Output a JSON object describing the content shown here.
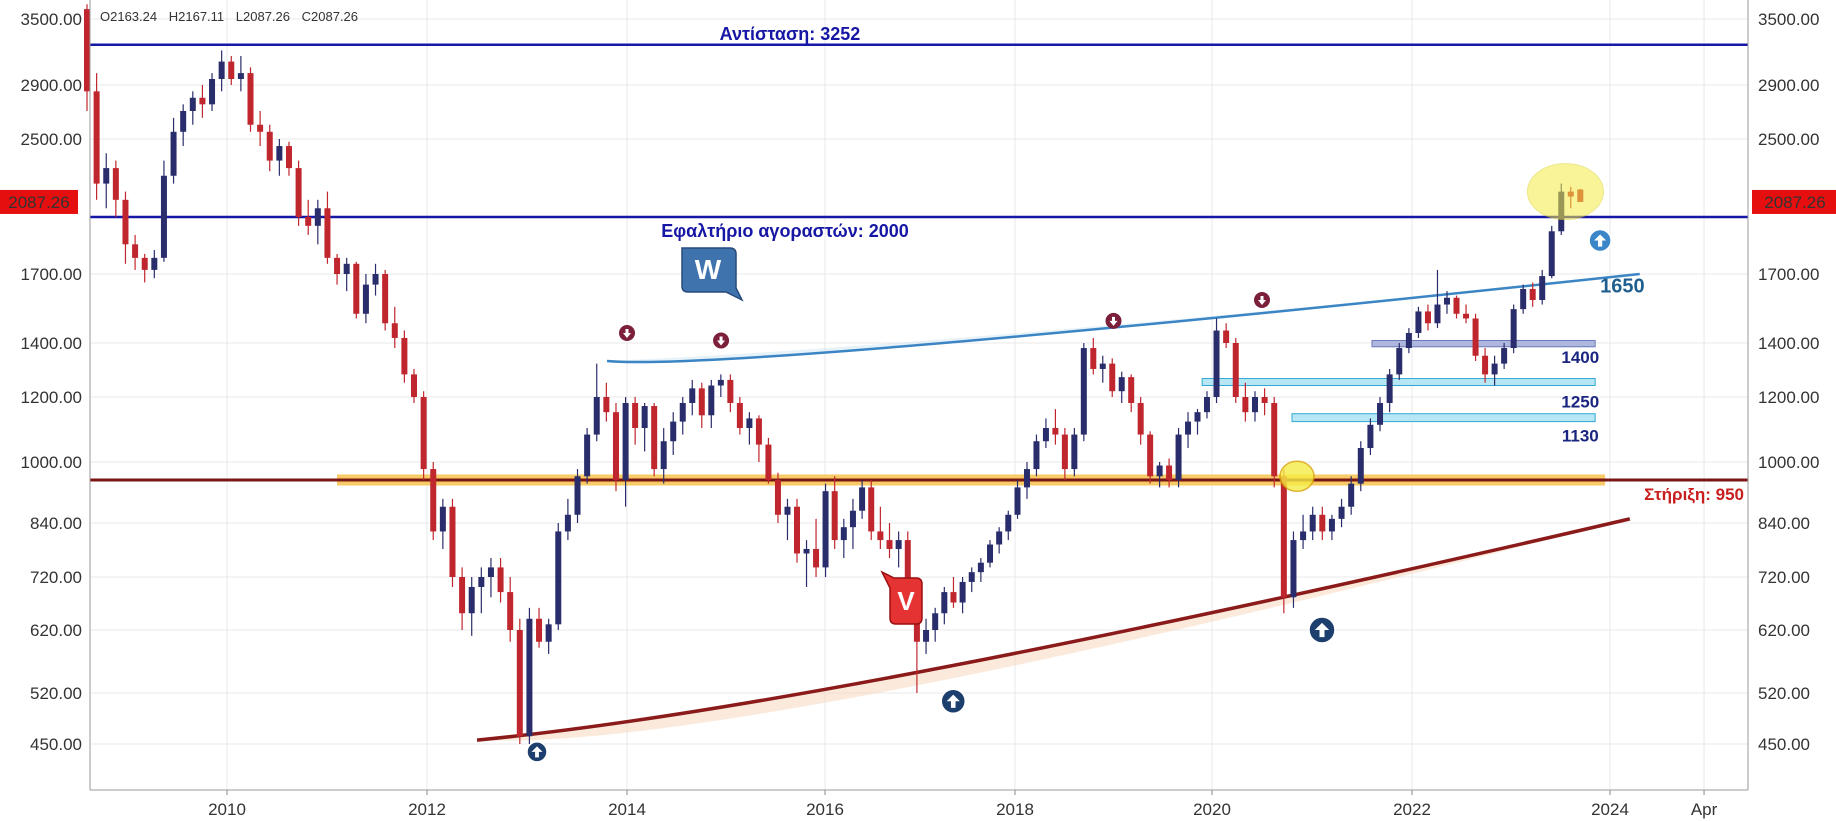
{
  "ohlc_readout": {
    "open": "O2163.24",
    "high": "H2167.11",
    "low": "L2087.26",
    "close": "C2087.26"
  },
  "chart_data": {
    "type": "candlestick",
    "timeframe": "monthly",
    "y_scale": "log",
    "ylim": [
      420,
      3650
    ],
    "y_ticks": [
      "3500.00",
      "2900.00",
      "2500.00",
      "1700.00",
      "1400.00",
      "1200.00",
      "1000.00",
      "840.00",
      "720.00",
      "620.00",
      "520.00",
      "450.00"
    ],
    "x_ticks": [
      "2010",
      "2012",
      "2014",
      "2016",
      "2018",
      "2020",
      "2022",
      "2024",
      "Apr"
    ],
    "last_price": "2087.26",
    "colors": {
      "up": "#2a2d6b",
      "down": "#c0262d",
      "resistance": "#1717a5",
      "support": "#7a1515",
      "trend_up": "#8b1a1a",
      "w_curve": "#3b85c4",
      "zone": "#b7e6f5"
    },
    "candles": [
      [
        2008.6,
        3600,
        3650,
        2700,
        2850
      ],
      [
        2008.7,
        2850,
        3000,
        2100,
        2200
      ],
      [
        2008.8,
        2200,
        2400,
        2050,
        2300
      ],
      [
        2008.9,
        2300,
        2350,
        2000,
        2100
      ],
      [
        2009.0,
        2100,
        2150,
        1750,
        1850
      ],
      [
        2009.1,
        1850,
        1900,
        1720,
        1780
      ],
      [
        2009.2,
        1780,
        1800,
        1660,
        1720
      ],
      [
        2009.3,
        1720,
        1820,
        1680,
        1780
      ],
      [
        2009.4,
        1780,
        2350,
        1760,
        2250
      ],
      [
        2009.5,
        2250,
        2650,
        2200,
        2550
      ],
      [
        2009.6,
        2550,
        2750,
        2450,
        2700
      ],
      [
        2009.7,
        2700,
        2850,
        2600,
        2800
      ],
      [
        2009.8,
        2800,
        2900,
        2650,
        2750
      ],
      [
        2009.9,
        2750,
        3000,
        2700,
        2950
      ],
      [
        2010.0,
        2950,
        3200,
        2850,
        3100
      ],
      [
        2010.1,
        3100,
        3150,
        2900,
        2950
      ],
      [
        2010.2,
        2950,
        3150,
        2850,
        3000
      ],
      [
        2010.3,
        3000,
        3050,
        2550,
        2600
      ],
      [
        2010.4,
        2600,
        2700,
        2450,
        2550
      ],
      [
        2010.5,
        2550,
        2600,
        2280,
        2350
      ],
      [
        2010.6,
        2350,
        2500,
        2250,
        2450
      ],
      [
        2010.7,
        2450,
        2480,
        2250,
        2300
      ],
      [
        2010.8,
        2300,
        2350,
        1950,
        2000
      ],
      [
        2010.9,
        2000,
        2100,
        1900,
        1950
      ],
      [
        2011.0,
        1950,
        2100,
        1850,
        2050
      ],
      [
        2011.1,
        2050,
        2150,
        1750,
        1780
      ],
      [
        2011.2,
        1780,
        1800,
        1650,
        1700
      ],
      [
        2011.3,
        1700,
        1780,
        1620,
        1750
      ],
      [
        2011.4,
        1750,
        1760,
        1500,
        1520
      ],
      [
        2011.5,
        1520,
        1700,
        1480,
        1650
      ],
      [
        2011.6,
        1650,
        1750,
        1600,
        1700
      ],
      [
        2011.7,
        1700,
        1720,
        1450,
        1480
      ],
      [
        2011.8,
        1480,
        1550,
        1380,
        1420
      ],
      [
        2011.9,
        1420,
        1450,
        1250,
        1280
      ],
      [
        2012.0,
        1280,
        1300,
        1180,
        1200
      ],
      [
        2012.1,
        1200,
        1220,
        950,
        980
      ],
      [
        2012.2,
        980,
        1000,
        800,
        820
      ],
      [
        2012.3,
        820,
        900,
        780,
        880
      ],
      [
        2012.4,
        880,
        900,
        700,
        720
      ],
      [
        2012.5,
        720,
        740,
        620,
        650
      ],
      [
        2012.6,
        650,
        720,
        610,
        700
      ],
      [
        2012.7,
        700,
        740,
        650,
        720
      ],
      [
        2012.8,
        720,
        760,
        680,
        740
      ],
      [
        2012.9,
        740,
        760,
        670,
        690
      ],
      [
        2013.0,
        690,
        720,
        600,
        620
      ],
      [
        2013.1,
        620,
        640,
        450,
        460
      ],
      [
        2013.2,
        460,
        660,
        450,
        640
      ],
      [
        2013.3,
        640,
        660,
        590,
        600
      ],
      [
        2013.4,
        600,
        640,
        580,
        630
      ],
      [
        2013.5,
        630,
        840,
        620,
        820
      ],
      [
        2013.6,
        820,
        900,
        800,
        860
      ],
      [
        2013.7,
        860,
        980,
        840,
        960
      ],
      [
        2013.8,
        960,
        1100,
        940,
        1080
      ],
      [
        2013.9,
        1080,
        1320,
        1060,
        1200
      ],
      [
        2014.0,
        1200,
        1250,
        1120,
        1150
      ],
      [
        2014.1,
        1150,
        1180,
        920,
        950
      ],
      [
        2014.2,
        950,
        1200,
        880,
        1180
      ],
      [
        2014.3,
        1180,
        1200,
        1050,
        1100
      ],
      [
        2014.4,
        1100,
        1180,
        1030,
        1170
      ],
      [
        2014.5,
        1170,
        1180,
        960,
        980
      ],
      [
        2014.6,
        980,
        1100,
        940,
        1060
      ],
      [
        2014.7,
        1060,
        1150,
        1020,
        1120
      ],
      [
        2014.8,
        1120,
        1200,
        1080,
        1180
      ],
      [
        2014.9,
        1180,
        1260,
        1140,
        1230
      ],
      [
        2015.0,
        1230,
        1250,
        1100,
        1140
      ],
      [
        2015.1,
        1140,
        1260,
        1100,
        1240
      ],
      [
        2015.2,
        1240,
        1280,
        1200,
        1260
      ],
      [
        2015.3,
        1260,
        1280,
        1150,
        1180
      ],
      [
        2015.4,
        1180,
        1200,
        1080,
        1100
      ],
      [
        2015.5,
        1100,
        1150,
        1050,
        1130
      ],
      [
        2015.6,
        1130,
        1140,
        1000,
        1050
      ],
      [
        2015.7,
        1050,
        1070,
        940,
        950
      ],
      [
        2015.8,
        950,
        970,
        840,
        860
      ],
      [
        2015.9,
        860,
        900,
        800,
        880
      ],
      [
        2016.0,
        880,
        900,
        750,
        770
      ],
      [
        2016.1,
        770,
        800,
        700,
        780
      ],
      [
        2016.2,
        780,
        850,
        720,
        740
      ],
      [
        2016.3,
        740,
        940,
        720,
        920
      ],
      [
        2016.4,
        920,
        960,
        780,
        800
      ],
      [
        2016.5,
        800,
        850,
        760,
        830
      ],
      [
        2016.6,
        830,
        900,
        780,
        870
      ],
      [
        2016.7,
        870,
        950,
        850,
        930
      ],
      [
        2016.8,
        930,
        950,
        800,
        820
      ],
      [
        2016.9,
        820,
        880,
        780,
        800
      ],
      [
        2017.0,
        800,
        840,
        760,
        780
      ],
      [
        2017.1,
        780,
        820,
        740,
        800
      ],
      [
        2017.2,
        800,
        820,
        640,
        660
      ],
      [
        2017.3,
        660,
        680,
        520,
        600
      ],
      [
        2017.4,
        600,
        640,
        580,
        620
      ],
      [
        2017.5,
        620,
        660,
        600,
        650
      ],
      [
        2017.6,
        650,
        700,
        630,
        690
      ],
      [
        2017.7,
        690,
        720,
        660,
        670
      ],
      [
        2017.8,
        670,
        720,
        650,
        710
      ],
      [
        2017.9,
        710,
        740,
        690,
        730
      ],
      [
        2018.0,
        730,
        760,
        710,
        750
      ],
      [
        2018.1,
        750,
        800,
        740,
        790
      ],
      [
        2018.2,
        790,
        830,
        770,
        820
      ],
      [
        2018.3,
        820,
        870,
        800,
        860
      ],
      [
        2018.4,
        860,
        950,
        850,
        930
      ],
      [
        2018.5,
        930,
        1000,
        900,
        980
      ],
      [
        2018.6,
        980,
        1080,
        960,
        1060
      ],
      [
        2018.7,
        1060,
        1130,
        1040,
        1100
      ],
      [
        2018.8,
        1100,
        1160,
        1050,
        1080
      ],
      [
        2018.9,
        1080,
        1100,
        950,
        980
      ],
      [
        2018.9,
        980,
        1100,
        960,
        1080
      ],
      [
        2019.0,
        1080,
        1400,
        1060,
        1380
      ],
      [
        2019.1,
        1380,
        1420,
        1280,
        1300
      ],
      [
        2019.2,
        1300,
        1350,
        1250,
        1320
      ],
      [
        2019.3,
        1320,
        1340,
        1200,
        1220
      ],
      [
        2019.4,
        1220,
        1290,
        1180,
        1270
      ],
      [
        2019.5,
        1270,
        1280,
        1150,
        1180
      ],
      [
        2019.6,
        1180,
        1200,
        1050,
        1080
      ],
      [
        2019.7,
        1080,
        1090,
        940,
        960
      ],
      [
        2019.8,
        960,
        1000,
        930,
        990
      ],
      [
        2019.9,
        990,
        1010,
        930,
        950
      ],
      [
        2020.0,
        950,
        1100,
        930,
        1080
      ],
      [
        2020.1,
        1080,
        1150,
        1040,
        1120
      ],
      [
        2020.2,
        1120,
        1160,
        1080,
        1150
      ],
      [
        2020.3,
        1150,
        1220,
        1130,
        1200
      ],
      [
        2020.4,
        1200,
        1500,
        1180,
        1450
      ],
      [
        2020.5,
        1450,
        1480,
        1380,
        1400
      ],
      [
        2020.6,
        1400,
        1420,
        1180,
        1200
      ],
      [
        2020.7,
        1200,
        1250,
        1120,
        1150
      ],
      [
        2020.8,
        1150,
        1220,
        1120,
        1200
      ],
      [
        2020.9,
        1200,
        1230,
        1140,
        1180
      ],
      [
        2021.0,
        1180,
        1200,
        930,
        960
      ],
      [
        2021.1,
        960,
        980,
        650,
        680
      ],
      [
        2021.2,
        680,
        820,
        660,
        800
      ],
      [
        2021.3,
        800,
        860,
        780,
        820
      ],
      [
        2021.4,
        820,
        880,
        800,
        860
      ],
      [
        2021.5,
        860,
        880,
        800,
        820
      ],
      [
        2021.6,
        820,
        860,
        800,
        850
      ],
      [
        2021.7,
        850,
        900,
        830,
        880
      ],
      [
        2021.8,
        880,
        960,
        860,
        940
      ],
      [
        2021.9,
        940,
        1060,
        920,
        1040
      ],
      [
        2022.0,
        1040,
        1130,
        1020,
        1110
      ],
      [
        2022.1,
        1110,
        1200,
        1090,
        1180
      ],
      [
        2022.2,
        1180,
        1300,
        1150,
        1280
      ],
      [
        2022.3,
        1280,
        1400,
        1260,
        1380
      ],
      [
        2022.4,
        1380,
        1460,
        1360,
        1440
      ],
      [
        2022.5,
        1440,
        1550,
        1420,
        1530
      ],
      [
        2022.6,
        1530,
        1560,
        1450,
        1480
      ],
      [
        2022.7,
        1480,
        1720,
        1460,
        1560
      ],
      [
        2022.8,
        1560,
        1620,
        1520,
        1590
      ],
      [
        2022.9,
        1590,
        1600,
        1500,
        1520
      ],
      [
        2023.0,
        1520,
        1560,
        1480,
        1500
      ],
      [
        2023.1,
        1500,
        1520,
        1330,
        1350
      ],
      [
        2023.2,
        1350,
        1380,
        1250,
        1280
      ],
      [
        2023.3,
        1280,
        1350,
        1240,
        1320
      ],
      [
        2023.4,
        1320,
        1400,
        1300,
        1380
      ],
      [
        2023.5,
        1380,
        1560,
        1360,
        1540
      ],
      [
        2023.6,
        1540,
        1650,
        1520,
        1630
      ],
      [
        2023.7,
        1630,
        1660,
        1550,
        1580
      ],
      [
        2023.8,
        1580,
        1720,
        1560,
        1690
      ],
      [
        2023.9,
        1690,
        1950,
        1680,
        1920
      ],
      [
        2024.0,
        1920,
        2200,
        1900,
        2150
      ],
      [
        2024.1,
        2150,
        2180,
        2050,
        2120
      ],
      [
        2024.2,
        2163,
        2167,
        2087,
        2087
      ]
    ],
    "annotations": [
      {
        "id": "resistance",
        "label": "Αντίσταση: 3252",
        "price": 3252
      },
      {
        "id": "buyers",
        "label": "Εφαλτήριο αγοραστών: 2000",
        "price": 2000
      },
      {
        "id": "support",
        "label": "Στήριξη: 950",
        "price": 950
      },
      {
        "id": "zone1400",
        "label": "1400",
        "price": 1400
      },
      {
        "id": "zone1250",
        "label": "1250",
        "price": 1250
      },
      {
        "id": "zone1130",
        "label": "1130",
        "price": 1130
      },
      {
        "id": "lvl1650",
        "label": "1650",
        "price": 1650
      },
      {
        "id": "w",
        "label": "W"
      },
      {
        "id": "v",
        "label": "V"
      }
    ]
  }
}
